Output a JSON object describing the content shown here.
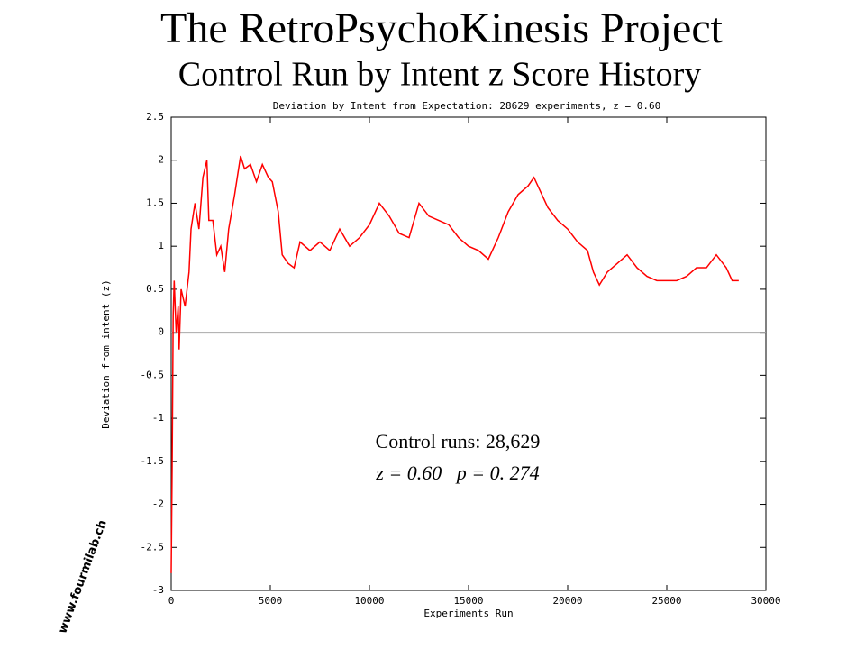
{
  "header": {
    "title": "The RetroPsychoKinesis Project",
    "subtitle": "Control Run by Intent z Score History"
  },
  "logo": "www.fourmilab.ch",
  "chart_data": {
    "type": "line",
    "title": "Deviation by Intent from Expectation: 28629 experiments, z = 0.60",
    "x_label": "Experiments Run",
    "y_label": "Deviation from intent (z)",
    "annotations": [
      "Control runs: 28,629",
      "z = 0.60   p = 0. 274"
    ],
    "xlim": [
      0,
      30000
    ],
    "xticks": [
      0,
      5000,
      10000,
      15000,
      20000,
      25000,
      30000
    ],
    "ylim": [
      -3,
      2.5
    ],
    "yticks": [
      -3,
      -2.5,
      -2,
      -1.5,
      -1,
      -0.5,
      0,
      0.5,
      1,
      1.5,
      2,
      2.5
    ],
    "zero_line": true,
    "series": [
      {
        "name": "Deviation",
        "color": "#ff0000",
        "x": [
          0,
          50,
          100,
          150,
          250,
          350,
          400,
          500,
          700,
          900,
          1000,
          1200,
          1400,
          1600,
          1800,
          1900,
          2100,
          2300,
          2500,
          2700,
          2900,
          3200,
          3500,
          3700,
          4000,
          4300,
          4600,
          4900,
          5100,
          5400,
          5600,
          5900,
          6200,
          6500,
          7000,
          7500,
          8000,
          8500,
          9000,
          9500,
          10000,
          10500,
          11000,
          11500,
          12000,
          12500,
          13000,
          13500,
          14000,
          14500,
          15000,
          15500,
          16000,
          16500,
          17000,
          17500,
          18000,
          18300,
          18700,
          19000,
          19500,
          20000,
          20500,
          21000,
          21300,
          21600,
          22000,
          22500,
          23000,
          23500,
          24000,
          24500,
          25000,
          25500,
          26000,
          26500,
          27000,
          27500,
          28000,
          28300,
          28629
        ],
        "values": [
          -2.8,
          -1.5,
          0.2,
          0.6,
          0.0,
          0.3,
          -0.2,
          0.5,
          0.3,
          0.7,
          1.2,
          1.5,
          1.2,
          1.8,
          2.0,
          1.3,
          1.3,
          0.9,
          1.0,
          0.7,
          1.2,
          1.6,
          2.05,
          1.9,
          1.95,
          1.75,
          1.95,
          1.8,
          1.75,
          1.4,
          0.9,
          0.8,
          0.75,
          1.05,
          0.95,
          1.05,
          0.95,
          1.2,
          1.0,
          1.1,
          1.25,
          1.5,
          1.35,
          1.15,
          1.1,
          1.5,
          1.35,
          1.3,
          1.25,
          1.1,
          1.0,
          0.95,
          0.85,
          1.1,
          1.4,
          1.6,
          1.7,
          1.8,
          1.6,
          1.45,
          1.3,
          1.2,
          1.05,
          0.95,
          0.7,
          0.55,
          0.7,
          0.8,
          0.9,
          0.75,
          0.65,
          0.6,
          0.6,
          0.6,
          0.65,
          0.75,
          0.75,
          0.9,
          0.75,
          0.6,
          0.6
        ]
      }
    ]
  }
}
